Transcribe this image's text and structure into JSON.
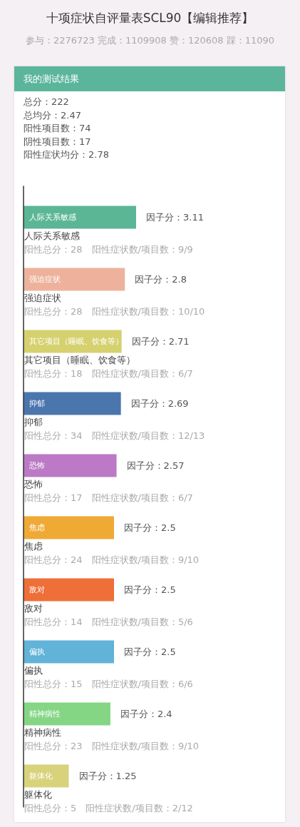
{
  "chart_data": {
    "type": "bar",
    "orientation": "horizontal",
    "title": "十项症状自评量表SCL90【编辑推荐】",
    "subtitle": "参与：2276723 完成：1109908 赞：120608 踩：11090",
    "categories": [
      "人际关系敏感",
      "强迫症状",
      "其它项目（睡眠、饮食等）",
      "抑郁",
      "恐怖",
      "焦虑",
      "敌对",
      "偏执",
      "精神病性",
      "躯体化"
    ],
    "values": [
      3.11,
      2.8,
      2.71,
      2.69,
      2.57,
      2.5,
      2.5,
      2.5,
      2.4,
      1.25
    ],
    "colors": [
      "#5bb696",
      "#eeb29c",
      "#d6d16f",
      "#4a76ad",
      "#bb79c6",
      "#efa935",
      "#ef6f39",
      "#61b3d7",
      "#84d684",
      "#d8d27b"
    ],
    "value_labels": [
      "因子分：3.11",
      "因子分：2.8",
      "因子分：2.71",
      "因子分：2.69",
      "因子分：2.57",
      "因子分：2.5",
      "因子分：2.5",
      "因子分：2.5",
      "因子分：2.4",
      "因子分：1.25"
    ],
    "tick_labels": "y",
    "annotations": [
      "我的测试结果",
      "总分：222",
      "总均分：2.47",
      "阳性项目数：74",
      "阴性项目数：17",
      "阳性症状均分：2.78",
      "阳性总分：28　阳性症状数/项目数：9/9",
      "阳性总分：28　阳性症状数/项目数：10/10",
      "阳性总分：18　阳性症状数/项目数：6/7",
      "阳性总分：34　阳性症状数/项目数：12/13",
      "阳性总分：17　阳性症状数/项目数：6/7",
      "阳性总分：24　阳性症状数/项目数：9/10",
      "阳性总分：14　阳性症状数/项目数：5/6",
      "阳性总分：15　阳性症状数/项目数：6/6",
      "阳性总分：23　阳性症状数/项目数：9/10",
      "阳性总分：5　阳性症状数/项目数：2/12"
    ]
  }
}
